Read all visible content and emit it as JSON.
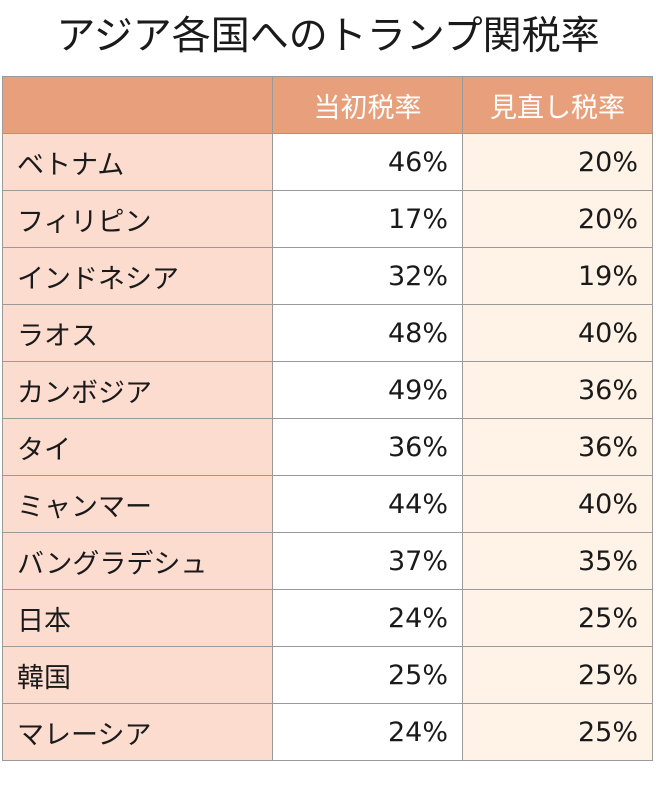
{
  "title": "アジア各国へのトランプ関税率",
  "colors": {
    "header_bg": "#e8a07c",
    "header_text": "#ffffff",
    "name_col_bg": "#fddcd0",
    "initial_col_bg": "#ffffff",
    "revised_col_bg": "#fff3e8",
    "border": "#9a9a9a"
  },
  "chart_data": {
    "type": "table",
    "title": "アジア各国へのトランプ関税率",
    "columns": [
      "",
      "当初税率",
      "見直し税率"
    ],
    "rows": [
      {
        "country": "ベトナム",
        "initial": "46%",
        "revised": "20%"
      },
      {
        "country": "フィリピン",
        "initial": "17%",
        "revised": "20%"
      },
      {
        "country": "インドネシア",
        "initial": "32%",
        "revised": "19%"
      },
      {
        "country": "ラオス",
        "initial": "48%",
        "revised": "40%"
      },
      {
        "country": "カンボジア",
        "initial": "49%",
        "revised": "36%"
      },
      {
        "country": "タイ",
        "initial": "36%",
        "revised": "36%"
      },
      {
        "country": "ミャンマー",
        "initial": "44%",
        "revised": "40%"
      },
      {
        "country": "バングラデシュ",
        "initial": "37%",
        "revised": "35%"
      },
      {
        "country": "日本",
        "initial": "24%",
        "revised": "25%"
      },
      {
        "country": "韓国",
        "initial": "25%",
        "revised": "25%"
      },
      {
        "country": "マレーシア",
        "initial": "24%",
        "revised": "25%"
      }
    ]
  }
}
